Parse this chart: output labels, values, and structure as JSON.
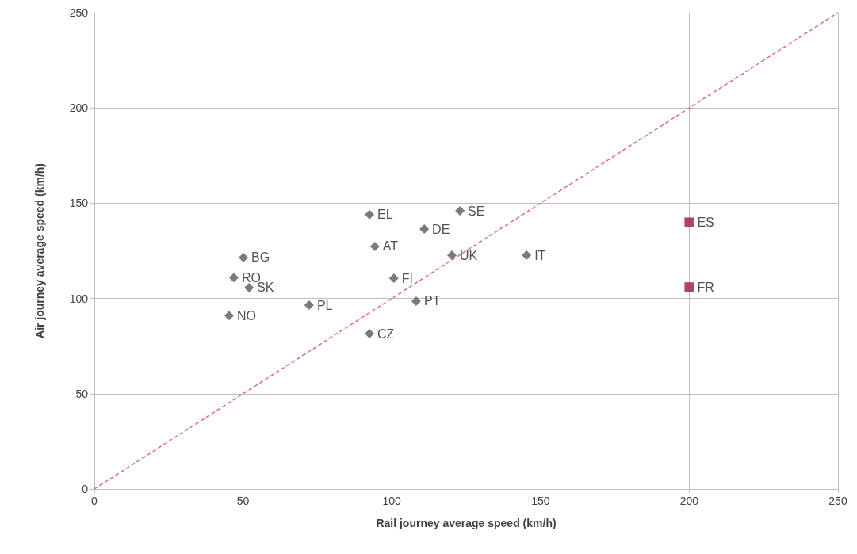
{
  "chart_data": {
    "type": "scatter",
    "xlabel": "Rail journey average speed (km/h)",
    "ylabel": "Air journey average speed (km/h)",
    "xlim": [
      0,
      250
    ],
    "xticks": [
      0,
      50,
      100,
      150,
      200,
      250
    ],
    "ylim": [
      0,
      250
    ],
    "yticks": [
      0,
      50,
      100,
      150,
      200,
      250
    ],
    "grid": true,
    "series": [
      {
        "marker": "diamond",
        "color": "#595959",
        "x": [
          50.1,
          46.9,
          52,
          45.3,
          72.2,
          92.5,
          94.3,
          92.5,
          100.7,
          108.2,
          110.9,
          122.9,
          120.2,
          145.3
        ],
        "values": [
          121.5,
          111,
          105.7,
          91,
          96.5,
          144,
          127.3,
          81.5,
          110.6,
          98.6,
          136.4,
          146,
          122.7,
          122.7
        ]
      },
      {
        "marker": "square",
        "color": "#a0153e",
        "x": [
          200,
          200
        ],
        "values": [
          140,
          106
        ]
      },
      {
        "type": "line",
        "marker": "none",
        "line_style": "dashed",
        "color": "#d9707f",
        "x": [
          0,
          250
        ],
        "values": [
          0,
          250
        ]
      }
    ],
    "annotations": [
      {
        "text": "BG",
        "x": 50.1,
        "y": 121.5
      },
      {
        "text": "RO",
        "x": 46.9,
        "y": 111
      },
      {
        "text": "SK",
        "x": 52,
        "y": 105.7
      },
      {
        "text": "NO",
        "x": 45.3,
        "y": 91
      },
      {
        "text": "PL",
        "x": 72.2,
        "y": 96.5
      },
      {
        "text": "EL",
        "x": 92.5,
        "y": 144
      },
      {
        "text": "AT",
        "x": 94.3,
        "y": 127.3
      },
      {
        "text": "CZ",
        "x": 92.5,
        "y": 81.5
      },
      {
        "text": "FI",
        "x": 100.7,
        "y": 110.6
      },
      {
        "text": "PT",
        "x": 108.2,
        "y": 98.6
      },
      {
        "text": "DE",
        "x": 110.9,
        "y": 136.4
      },
      {
        "text": "SE",
        "x": 122.9,
        "y": 146
      },
      {
        "text": "UK",
        "x": 120.2,
        "y": 122.7
      },
      {
        "text": "IT",
        "x": 145.3,
        "y": 122.7
      },
      {
        "text": "ES",
        "x": 200,
        "y": 140
      },
      {
        "text": "FR",
        "x": 200,
        "y": 106
      }
    ]
  }
}
